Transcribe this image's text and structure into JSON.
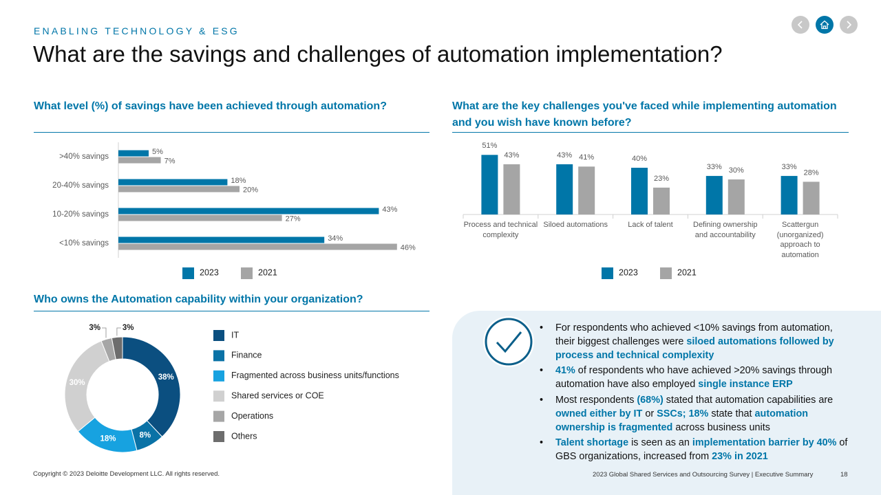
{
  "header": {
    "section": "ENABLING TECHNOLOGY & ESG",
    "title": "What are the savings and challenges of automation implementation?"
  },
  "chart_data": [
    {
      "type": "bar",
      "horizontal": true,
      "title": "What level (%) of savings have been achieved through automation?",
      "categories": [
        ">40% savings",
        "20-40% savings",
        "10-20% savings",
        "<10% savings"
      ],
      "series": [
        {
          "name": "2023",
          "color": "#0076a8",
          "values": [
            5,
            18,
            43,
            34
          ],
          "value_labels": [
            "5%",
            "18%",
            "43%",
            "34%"
          ]
        },
        {
          "name": "2021",
          "color": "#a5a5a5",
          "values": [
            7,
            20,
            27,
            46
          ],
          "value_labels": [
            "7%",
            "20%",
            "27%",
            "46%"
          ]
        }
      ],
      "xlim": [
        0,
        50
      ],
      "legend": "bottom"
    },
    {
      "type": "bar",
      "horizontal": false,
      "title": "What are the key challenges you've faced while implementing automation and you wish have known before?",
      "categories": [
        "Process and technical complexity",
        "Siloed automations",
        "Lack of talent",
        "Defining ownership and accountability",
        "Scattergun (unorganized) approach to automation"
      ],
      "series": [
        {
          "name": "2023",
          "color": "#0076a8",
          "values": [
            51,
            43,
            40,
            33,
            33
          ],
          "value_labels": [
            "51%",
            "43%",
            "40%",
            "33%",
            "33%"
          ]
        },
        {
          "name": "2021",
          "color": "#a5a5a5",
          "values": [
            43,
            41,
            23,
            30,
            28
          ],
          "value_labels": [
            "43%",
            "41%",
            "23%",
            "30%",
            "28%"
          ]
        }
      ],
      "ylim": [
        0,
        60
      ],
      "legend": "bottom"
    },
    {
      "type": "donut",
      "title": "Who owns the Automation capability within your organization?",
      "categories": [
        "IT",
        "Finance",
        "Fragmented across business units/functions",
        "Shared services or COE",
        "Operations",
        "Others"
      ],
      "values": [
        38,
        8,
        18,
        30,
        3,
        3
      ],
      "value_labels": [
        "38%",
        "8%",
        "18%",
        "30%",
        "3%",
        "3%"
      ],
      "colors": [
        "#0b4f80",
        "#0a72a6",
        "#17a2e0",
        "#d0d0d0",
        "#a6a6a6",
        "#6d6d6d"
      ],
      "legend": "right"
    }
  ],
  "bullets": [
    [
      {
        "text": "For respondents who achieved <10% savings from automation, their biggest challenges were ",
        "em": false
      },
      {
        "text": "siloed automations followed by process and technical complexity",
        "em": true
      }
    ],
    [
      {
        "text": "41%",
        "em": true
      },
      {
        "text": " of respondents who have achieved >20% savings through automation have also employed ",
        "em": false
      },
      {
        "text": "single instance ERP",
        "em": true
      }
    ],
    [
      {
        "text": "Most respondents ",
        "em": false
      },
      {
        "text": "(68%)",
        "em": true
      },
      {
        "text": " stated that automation capabilities are ",
        "em": false
      },
      {
        "text": "owned either by IT",
        "em": true
      },
      {
        "text": " or ",
        "em": false
      },
      {
        "text": "SSCs; 18%",
        "em": true
      },
      {
        "text": " state that ",
        "em": false
      },
      {
        "text": "automation ownership is fragmented",
        "em": true
      },
      {
        "text": " across business units",
        "em": false
      }
    ],
    [
      {
        "text": "Talent shortage",
        "em": true
      },
      {
        "text": " is seen as an ",
        "em": false
      },
      {
        "text": "implementation barrier by 40%",
        "em": true
      },
      {
        "text": " of GBS organizations, increased from ",
        "em": false
      },
      {
        "text": "23% in 2021",
        "em": true
      }
    ]
  ],
  "footer": {
    "copyright": "Copyright © 2023 Deloitte Development LLC. All rights reserved.",
    "report": "2023 Global Shared Services and Outsourcing Survey | Executive Summary",
    "page": "18"
  }
}
